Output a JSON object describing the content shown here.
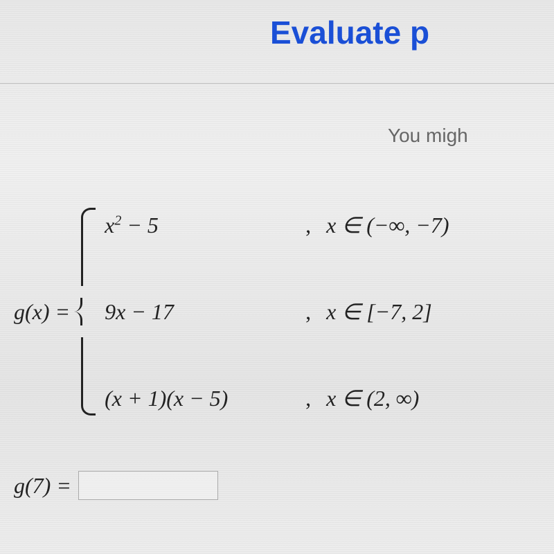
{
  "header": {
    "title_partial": "Evaluate p"
  },
  "hint": {
    "text_partial": "You migh"
  },
  "function": {
    "lhs": "g(x) = ",
    "pieces": [
      {
        "expr_html": "x<span class='sup'>2</span> − 5",
        "cond": "x ∈ (−∞, −7)"
      },
      {
        "expr_html": "9x − 17",
        "cond": "x ∈ [−7, 2]"
      },
      {
        "expr_html": "(x + 1)(x − 5)",
        "cond": "x ∈ (2, ∞)"
      }
    ]
  },
  "question": {
    "prompt": "g(7) = "
  },
  "styling": {
    "title_color": "#1a4fd6",
    "title_fontsize": 46,
    "body_fontsize": 32,
    "text_color": "#222",
    "background_gradient": [
      "#e8e8e8",
      "#f0f0f0",
      "#e5e5e5",
      "#ededed"
    ]
  }
}
